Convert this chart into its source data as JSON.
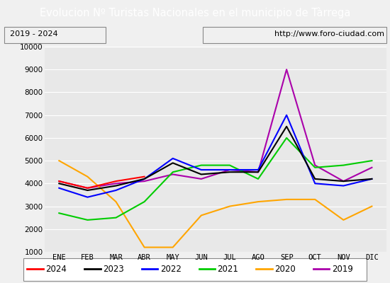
{
  "title": "Evolucion Nº Turistas Nacionales en el municipio de Tàrrega",
  "subtitle_left": "2019 - 2024",
  "subtitle_right": "http://www.foro-ciudad.com",
  "months": [
    "ENE",
    "FEB",
    "MAR",
    "ABR",
    "MAY",
    "JUN",
    "JUL",
    "AGO",
    "SEP",
    "OCT",
    "NOV",
    "DIC"
  ],
  "series": {
    "2024": [
      4100,
      3800,
      4100,
      4300,
      null,
      null,
      null,
      null,
      null,
      null,
      null,
      null
    ],
    "2023": [
      4000,
      3700,
      3900,
      4200,
      4900,
      4400,
      4500,
      4500,
      6500,
      4200,
      4100,
      4200
    ],
    "2022": [
      3800,
      3400,
      3700,
      4200,
      5100,
      4600,
      4600,
      4600,
      7000,
      4000,
      3900,
      4200
    ],
    "2021": [
      2700,
      2400,
      2500,
      3200,
      4500,
      4800,
      4800,
      4200,
      6000,
      4700,
      4800,
      5000
    ],
    "2020": [
      5000,
      4300,
      3200,
      1200,
      1200,
      2600,
      3000,
      3200,
      3300,
      3300,
      2400,
      3000
    ],
    "2019": [
      4100,
      3800,
      4000,
      4100,
      4400,
      4200,
      4600,
      4500,
      9000,
      4800,
      4100,
      4700
    ]
  },
  "colors": {
    "2024": "#ff0000",
    "2023": "#000000",
    "2022": "#0000ff",
    "2021": "#00cc00",
    "2020": "#ffa500",
    "2019": "#aa00aa"
  },
  "ylim": [
    1000,
    10000
  ],
  "yticks": [
    1000,
    2000,
    3000,
    4000,
    5000,
    6000,
    7000,
    8000,
    9000,
    10000
  ],
  "title_bg_color": "#4472c4",
  "title_fg_color": "#ffffff",
  "plot_bg_color": "#e8e8e8",
  "grid_color": "#ffffff",
  "bg_color": "#f0f0f0",
  "title_fontsize": 10.5,
  "axis_fontsize": 7.5,
  "legend_fontsize": 8.5
}
